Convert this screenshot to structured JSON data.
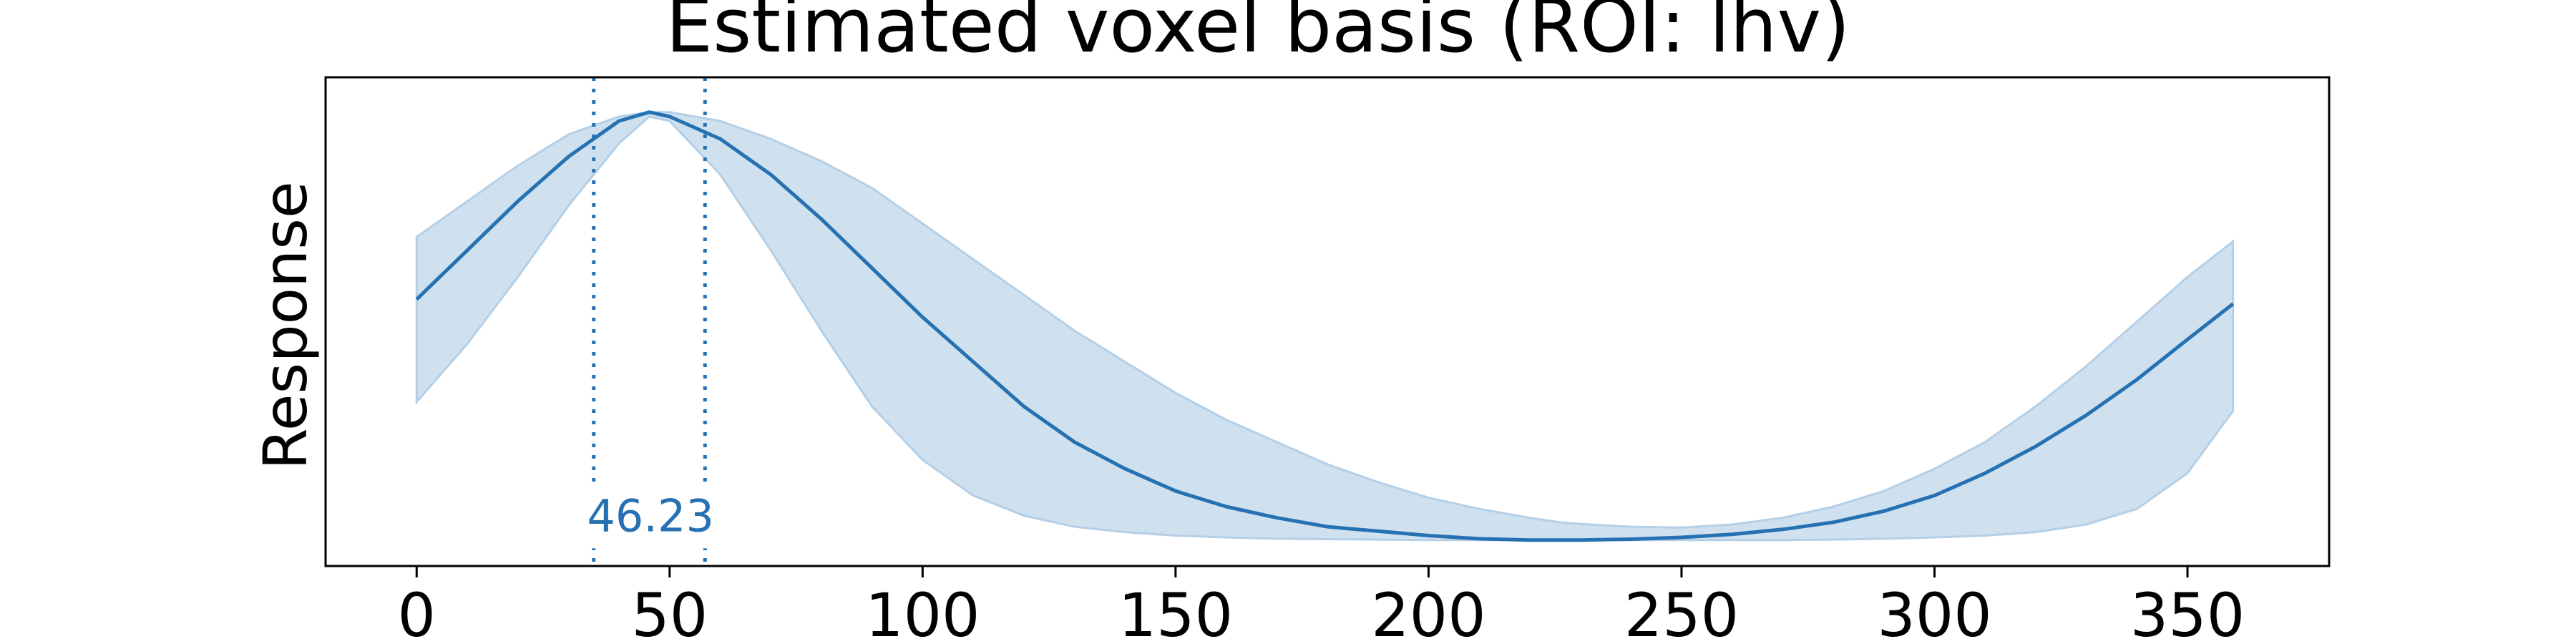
{
  "chart_data": {
    "type": "line",
    "title": "Estimated voxel basis (ROI: lhv)",
    "xlabel": "",
    "ylabel": "Response",
    "xlim": [
      -18,
      378
    ],
    "ylim": [
      0,
      1
    ],
    "xticks": [
      0,
      50,
      100,
      150,
      200,
      250,
      300,
      350
    ],
    "yticks": [],
    "grid": false,
    "legend": "none",
    "series": [
      {
        "role": "mean",
        "x": [
          0,
          10,
          20,
          30,
          40,
          46,
          50,
          60,
          70,
          80,
          90,
          100,
          110,
          120,
          130,
          140,
          150,
          160,
          170,
          180,
          190,
          200,
          210,
          220,
          226,
          230,
          240,
          250,
          260,
          270,
          280,
          290,
          300,
          310,
          320,
          330,
          340,
          350,
          359
        ],
        "y": [
          0.55,
          0.66,
          0.77,
          0.87,
          0.95,
          0.97,
          0.96,
          0.91,
          0.83,
          0.73,
          0.62,
          0.51,
          0.41,
          0.31,
          0.23,
          0.17,
          0.12,
          0.085,
          0.06,
          0.04,
          0.03,
          0.02,
          0.013,
          0.01,
          0.01,
          0.01,
          0.012,
          0.016,
          0.023,
          0.034,
          0.05,
          0.075,
          0.11,
          0.16,
          0.22,
          0.29,
          0.37,
          0.46,
          0.54
        ]
      },
      {
        "role": "band",
        "x": [
          0,
          10,
          20,
          30,
          40,
          46,
          50,
          60,
          70,
          80,
          90,
          100,
          110,
          120,
          130,
          140,
          150,
          160,
          170,
          180,
          190,
          200,
          210,
          220,
          226,
          230,
          240,
          250,
          260,
          270,
          280,
          290,
          300,
          310,
          320,
          330,
          340,
          350,
          359
        ],
        "lower": [
          0.32,
          0.45,
          0.6,
          0.76,
          0.9,
          0.96,
          0.95,
          0.83,
          0.66,
          0.48,
          0.31,
          0.19,
          0.11,
          0.065,
          0.04,
          0.028,
          0.02,
          0.016,
          0.013,
          0.012,
          0.011,
          0.01,
          0.01,
          0.01,
          0.01,
          0.01,
          0.01,
          0.01,
          0.01,
          0.01,
          0.011,
          0.013,
          0.016,
          0.02,
          0.028,
          0.045,
          0.08,
          0.16,
          0.3
        ],
        "upper": [
          0.69,
          0.77,
          0.85,
          0.92,
          0.96,
          0.97,
          0.97,
          0.95,
          0.91,
          0.86,
          0.8,
          0.72,
          0.64,
          0.56,
          0.48,
          0.41,
          0.34,
          0.28,
          0.23,
          0.18,
          0.14,
          0.105,
          0.08,
          0.06,
          0.05,
          0.046,
          0.04,
          0.038,
          0.045,
          0.06,
          0.085,
          0.12,
          0.17,
          0.23,
          0.31,
          0.4,
          0.5,
          0.6,
          0.68
        ]
      }
    ],
    "vlines": [
      35,
      57
    ],
    "annotation": {
      "text": "46.23",
      "x": 46.23,
      "y": 0.03
    },
    "colors": {
      "line": "#2671b2",
      "band": "#cfe1ef",
      "band_edge": "#b4cfe6",
      "annotation": "#2671b2",
      "axes": "#000000"
    }
  }
}
